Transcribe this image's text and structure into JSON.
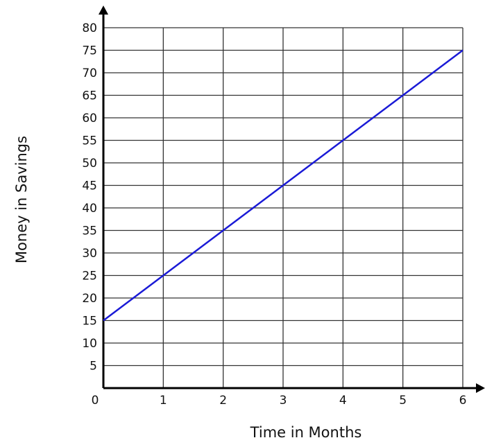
{
  "chart_data": {
    "type": "line",
    "xlabel": "Time in Months",
    "ylabel": "Money in Savings",
    "xlim": [
      0,
      6
    ],
    "ylim": [
      0,
      80
    ],
    "x_ticks": [
      0,
      1,
      2,
      3,
      4,
      5,
      6
    ],
    "y_ticks": [
      5,
      10,
      15,
      20,
      25,
      30,
      35,
      40,
      45,
      50,
      55,
      60,
      65,
      70,
      75,
      80
    ],
    "grid": true,
    "series": [
      {
        "x": [
          0,
          6
        ],
        "y": [
          15,
          75
        ],
        "color": "#1a1ad6"
      }
    ]
  }
}
